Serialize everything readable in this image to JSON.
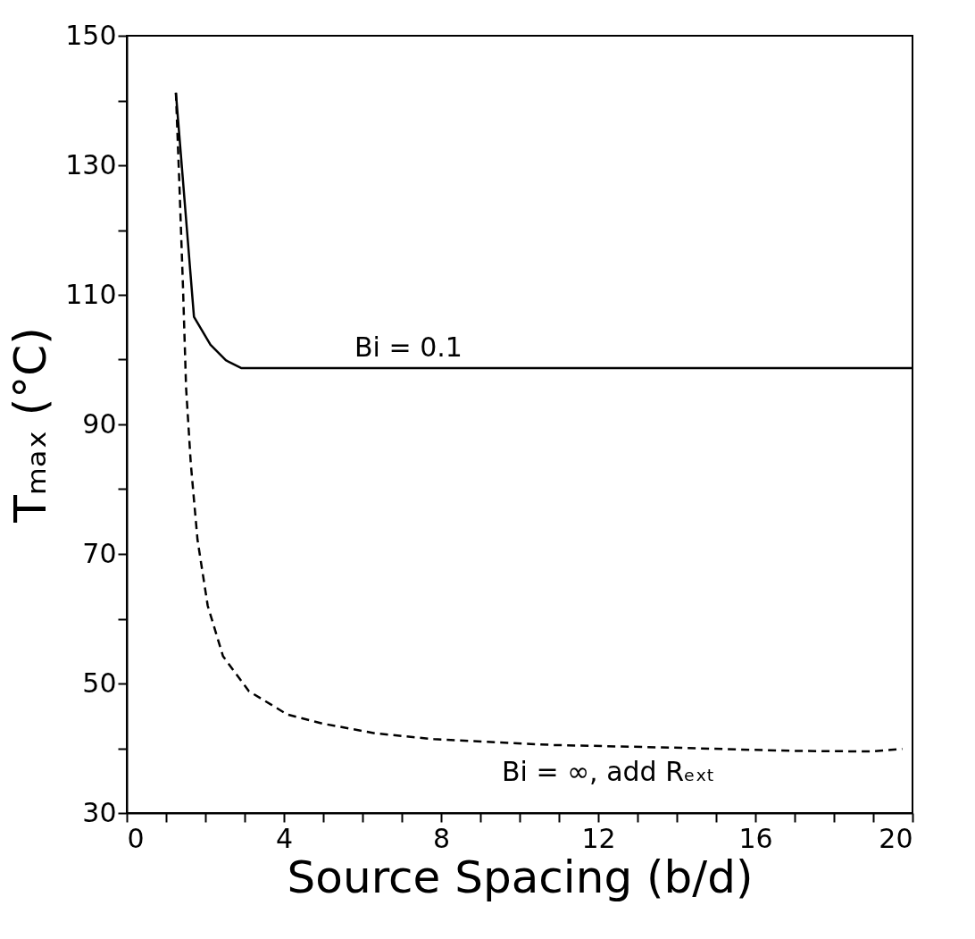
{
  "chart_data": {
    "type": "line",
    "xlabel": "Source Spacing (b/d)",
    "ylabel": "Tₘₐₓ  (°C)",
    "xlim": [
      0,
      20
    ],
    "ylim": [
      30,
      150
    ],
    "xticks": [
      0,
      {
        "value": 1,
        "label": null
      },
      {
        "value": 2,
        "label": null
      },
      {
        "value": 3,
        "label": null
      },
      4,
      {
        "value": 5,
        "label": null
      },
      {
        "value": 6,
        "label": null
      },
      {
        "value": 7,
        "label": null
      },
      8,
      {
        "value": 9,
        "label": null
      },
      {
        "value": 10,
        "label": null
      },
      {
        "value": 11,
        "label": null
      },
      12,
      {
        "value": 13,
        "label": null
      },
      {
        "value": 14,
        "label": null
      },
      {
        "value": 15,
        "label": null
      },
      16,
      {
        "value": 17,
        "label": null
      },
      {
        "value": 18,
        "label": null
      },
      {
        "value": 19,
        "label": null
      },
      20
    ],
    "yticks": [
      30,
      {
        "value": 40,
        "label": null
      },
      50,
      {
        "value": 60,
        "label": null
      },
      70,
      {
        "value": 80,
        "label": null
      },
      90,
      {
        "value": 100,
        "label": null
      },
      110,
      {
        "value": 120,
        "label": null
      },
      130,
      {
        "value": 140,
        "label": null
      },
      150
    ],
    "grid": false,
    "marker": "none",
    "series": [
      {
        "name": "Bi  =  0.1",
        "color": "#000000",
        "line_style": "solid",
        "x": [
          1.25,
          1.71,
          2.13,
          2.52,
          2.91,
          5,
          10,
          15,
          20
        ],
        "values": [
          141.2,
          106.6,
          102.3,
          99.9,
          98.7,
          98.7,
          98.7,
          98.7,
          98.7
        ]
      },
      {
        "name": "Bi  =  ∞,  add  Rₑₓₜ",
        "color": "#000000",
        "line_style": "dashed",
        "x": [
          1.25,
          1.34,
          1.43,
          1.51,
          1.63,
          1.8,
          2.06,
          2.45,
          3.11,
          4.09,
          4.99,
          6.33,
          7.82,
          10.85,
          13.87,
          16.9,
          18.93,
          19.74
        ],
        "values": [
          141.2,
          126.9,
          111.3,
          95.6,
          83.9,
          72.2,
          62,
          54.2,
          48.8,
          45.2,
          43.8,
          42.3,
          41.4,
          40.5,
          40.1,
          39.6,
          39.5,
          39.9
        ]
      }
    ]
  }
}
